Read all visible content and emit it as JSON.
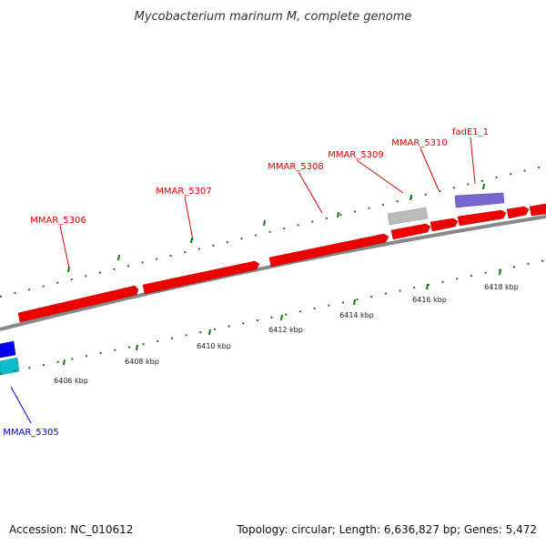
{
  "title": "Mycobacterium marinum M, complete genome",
  "footer": {
    "accession": "Accession: NC_010612",
    "topology": "Topology: circular; Length: 6,636,827 bp; Genes: 5,472"
  },
  "colors": {
    "background": "#ffffff",
    "gene_red": "#ee0000",
    "gene_gray": "#bbbbbb",
    "gene_purple": "#7766cc",
    "gene_blue": "#0000ee",
    "gene_cyan": "#11bbcc",
    "backbone": "#888888",
    "tick_green": "#117711",
    "label_red": "#dd0000",
    "label_blue": "#0000cc"
  },
  "genes": {
    "mmar_5306": "MMAR_5306",
    "mmar_5307": "MMAR_5307",
    "mmar_5308": "MMAR_5308",
    "mmar_5309": "MMAR_5309",
    "mmar_5310": "MMAR_5310",
    "fade1_1": "fadE1_1",
    "mmar_5305": "MMAR_5305"
  },
  "scale": {
    "ticks": [
      "6406 kbp",
      "6408 kbp",
      "6410 kbp",
      "6412 kbp",
      "6414 kbp",
      "6416 kbp",
      "6418 kbp"
    ]
  }
}
